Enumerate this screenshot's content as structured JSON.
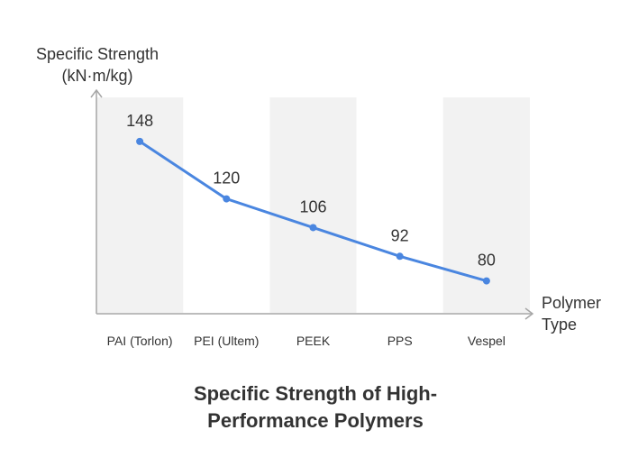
{
  "chart_data": {
    "type": "line",
    "title": "Specific Strength of High-Performance Polymers",
    "ylabel": "Specific Strength (kN·m/kg)",
    "ylabel_lines": [
      "Specific Strength",
      "(kN·m/kg)"
    ],
    "xlabel": "Polymer Type",
    "xlabel_lines": [
      "Polymer",
      "Type"
    ],
    "title_lines": [
      "Specific Strength of High-",
      "Performance Polymers"
    ],
    "categories": [
      "PAI (Torlon)",
      "PEI (Ultem)",
      "PEEK",
      "PPS",
      "Vespel"
    ],
    "values": [
      148,
      120,
      106,
      92,
      80
    ],
    "data_labels": [
      "148",
      "120",
      "106",
      "92",
      "80"
    ],
    "ylim": [
      64,
      173
    ],
    "grid": false,
    "alternating_column_bands": true,
    "line_color": "#4a86e0",
    "band_color": "#f2f2f2",
    "axis_color": "#a6a6a6",
    "text_color": "#333333"
  }
}
